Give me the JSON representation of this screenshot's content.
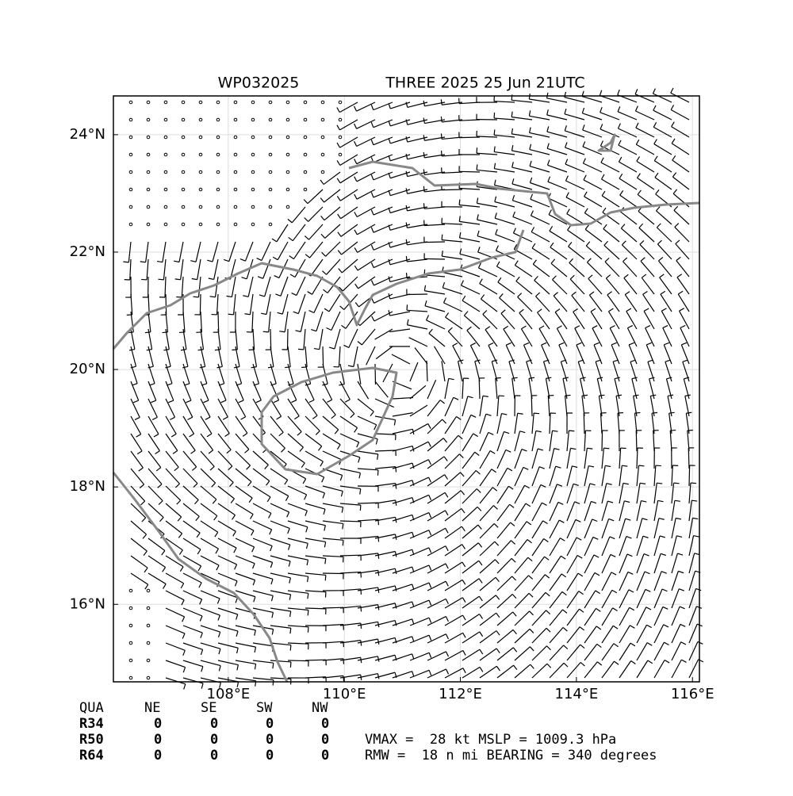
{
  "header": {
    "storm_id": "WP032025",
    "title": "THREE 2025 25 Jun 21UTC"
  },
  "map": {
    "lon_range": [
      106.02,
      116.12
    ],
    "lat_range": [
      14.68,
      24.66
    ],
    "lon_ticks": [
      {
        "value": 108,
        "label": "108°E"
      },
      {
        "value": 110,
        "label": "110°E"
      },
      {
        "value": 112,
        "label": "112°E"
      },
      {
        "value": 114,
        "label": "114°E"
      },
      {
        "value": 116,
        "label": "116°E"
      }
    ],
    "lat_ticks": [
      {
        "value": 16,
        "label": "16°N"
      },
      {
        "value": 18,
        "label": "18°N"
      },
      {
        "value": 20,
        "label": "20°N"
      },
      {
        "value": 22,
        "label": "22°N"
      },
      {
        "value": 24,
        "label": "24°N"
      }
    ]
  },
  "table": {
    "columns": [
      "QUA",
      "NE",
      "SE",
      "SW",
      "NW"
    ],
    "rows": [
      [
        "R34",
        "0",
        "0",
        "0",
        "0"
      ],
      [
        "R50",
        "0",
        "0",
        "0",
        "0"
      ],
      [
        "R64",
        "0",
        "0",
        "0",
        "0"
      ]
    ]
  },
  "info": {
    "line1": "VMAX =  28 kt MSLP = 1009.3 hPa",
    "line2": "RMW =  18 n mi BEARING = 340 degrees"
  }
}
